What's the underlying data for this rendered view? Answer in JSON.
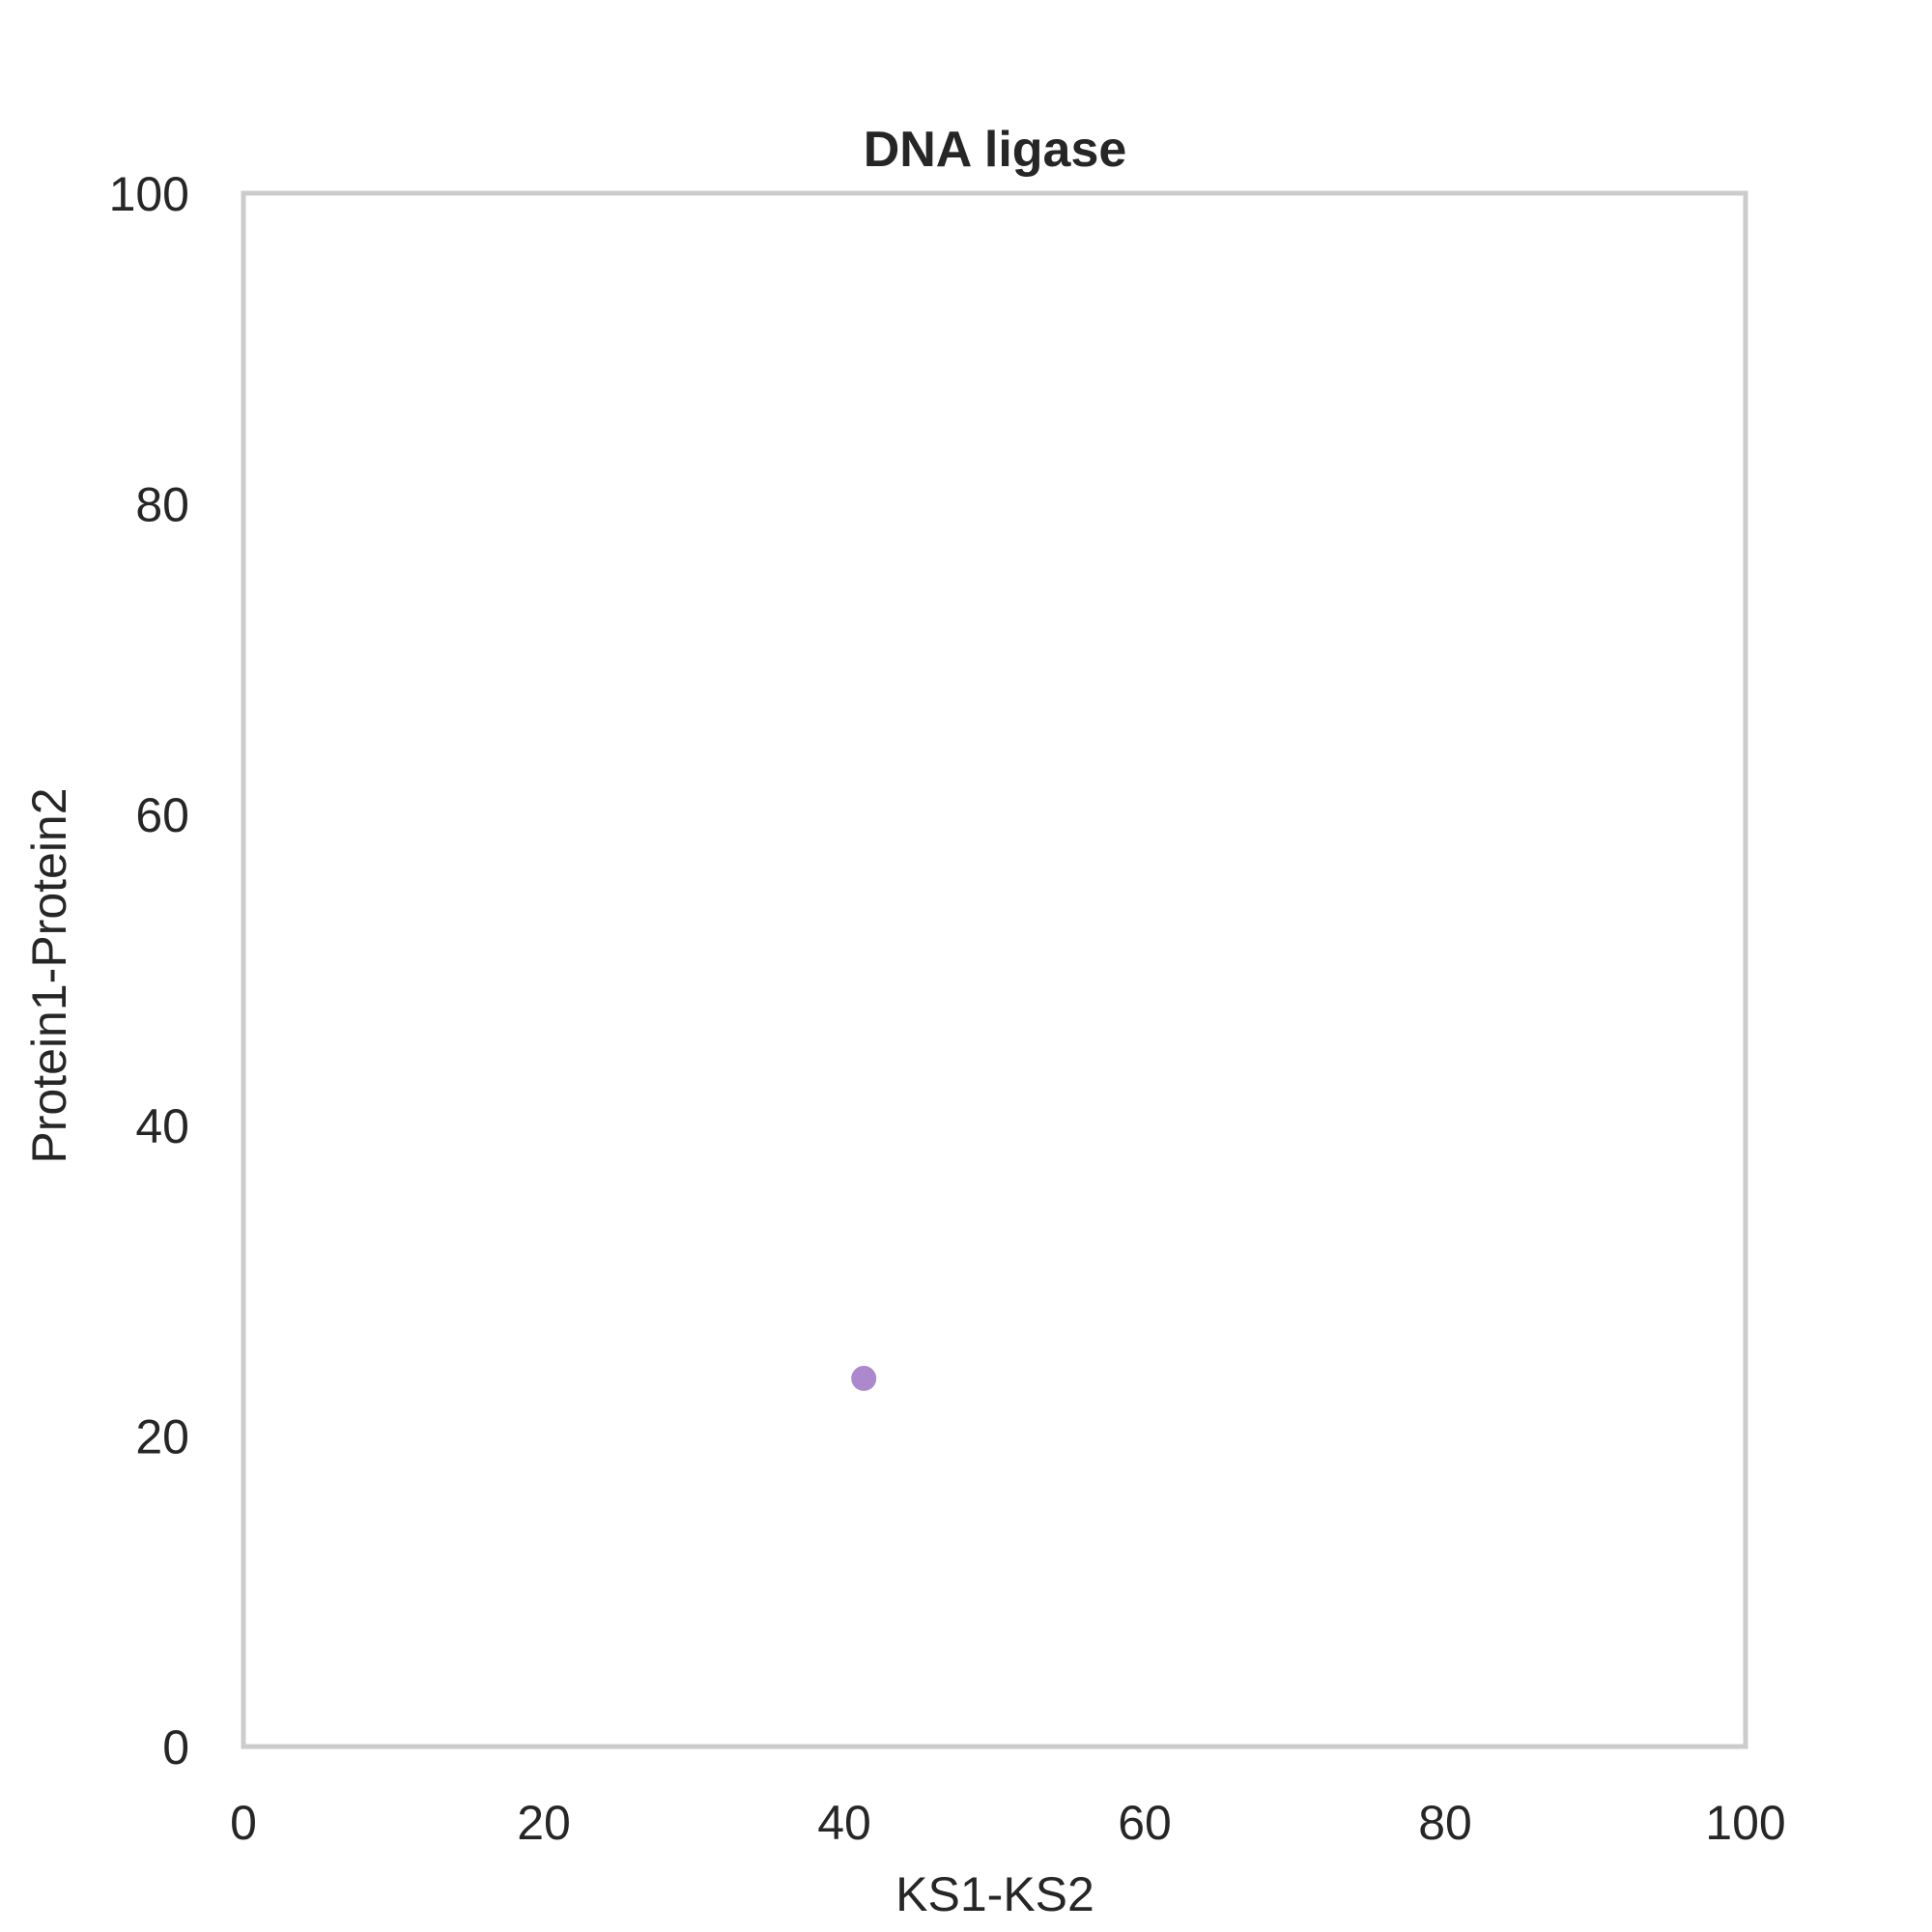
{
  "chart_data": {
    "type": "scatter",
    "title": "DNA ligase",
    "xlabel": "KS1-KS2",
    "ylabel": "Protein1-Protein2",
    "xlim": [
      0,
      100
    ],
    "ylim": [
      0,
      100
    ],
    "xticks": [
      "0",
      "20",
      "40",
      "60",
      "80",
      "100"
    ],
    "yticks": [
      "0",
      "20",
      "40",
      "60",
      "80",
      "100"
    ],
    "grid": false,
    "series": [
      {
        "color": "#a783c9",
        "points": [
          {
            "x": 41.3,
            "y": 23.7
          }
        ]
      }
    ]
  }
}
